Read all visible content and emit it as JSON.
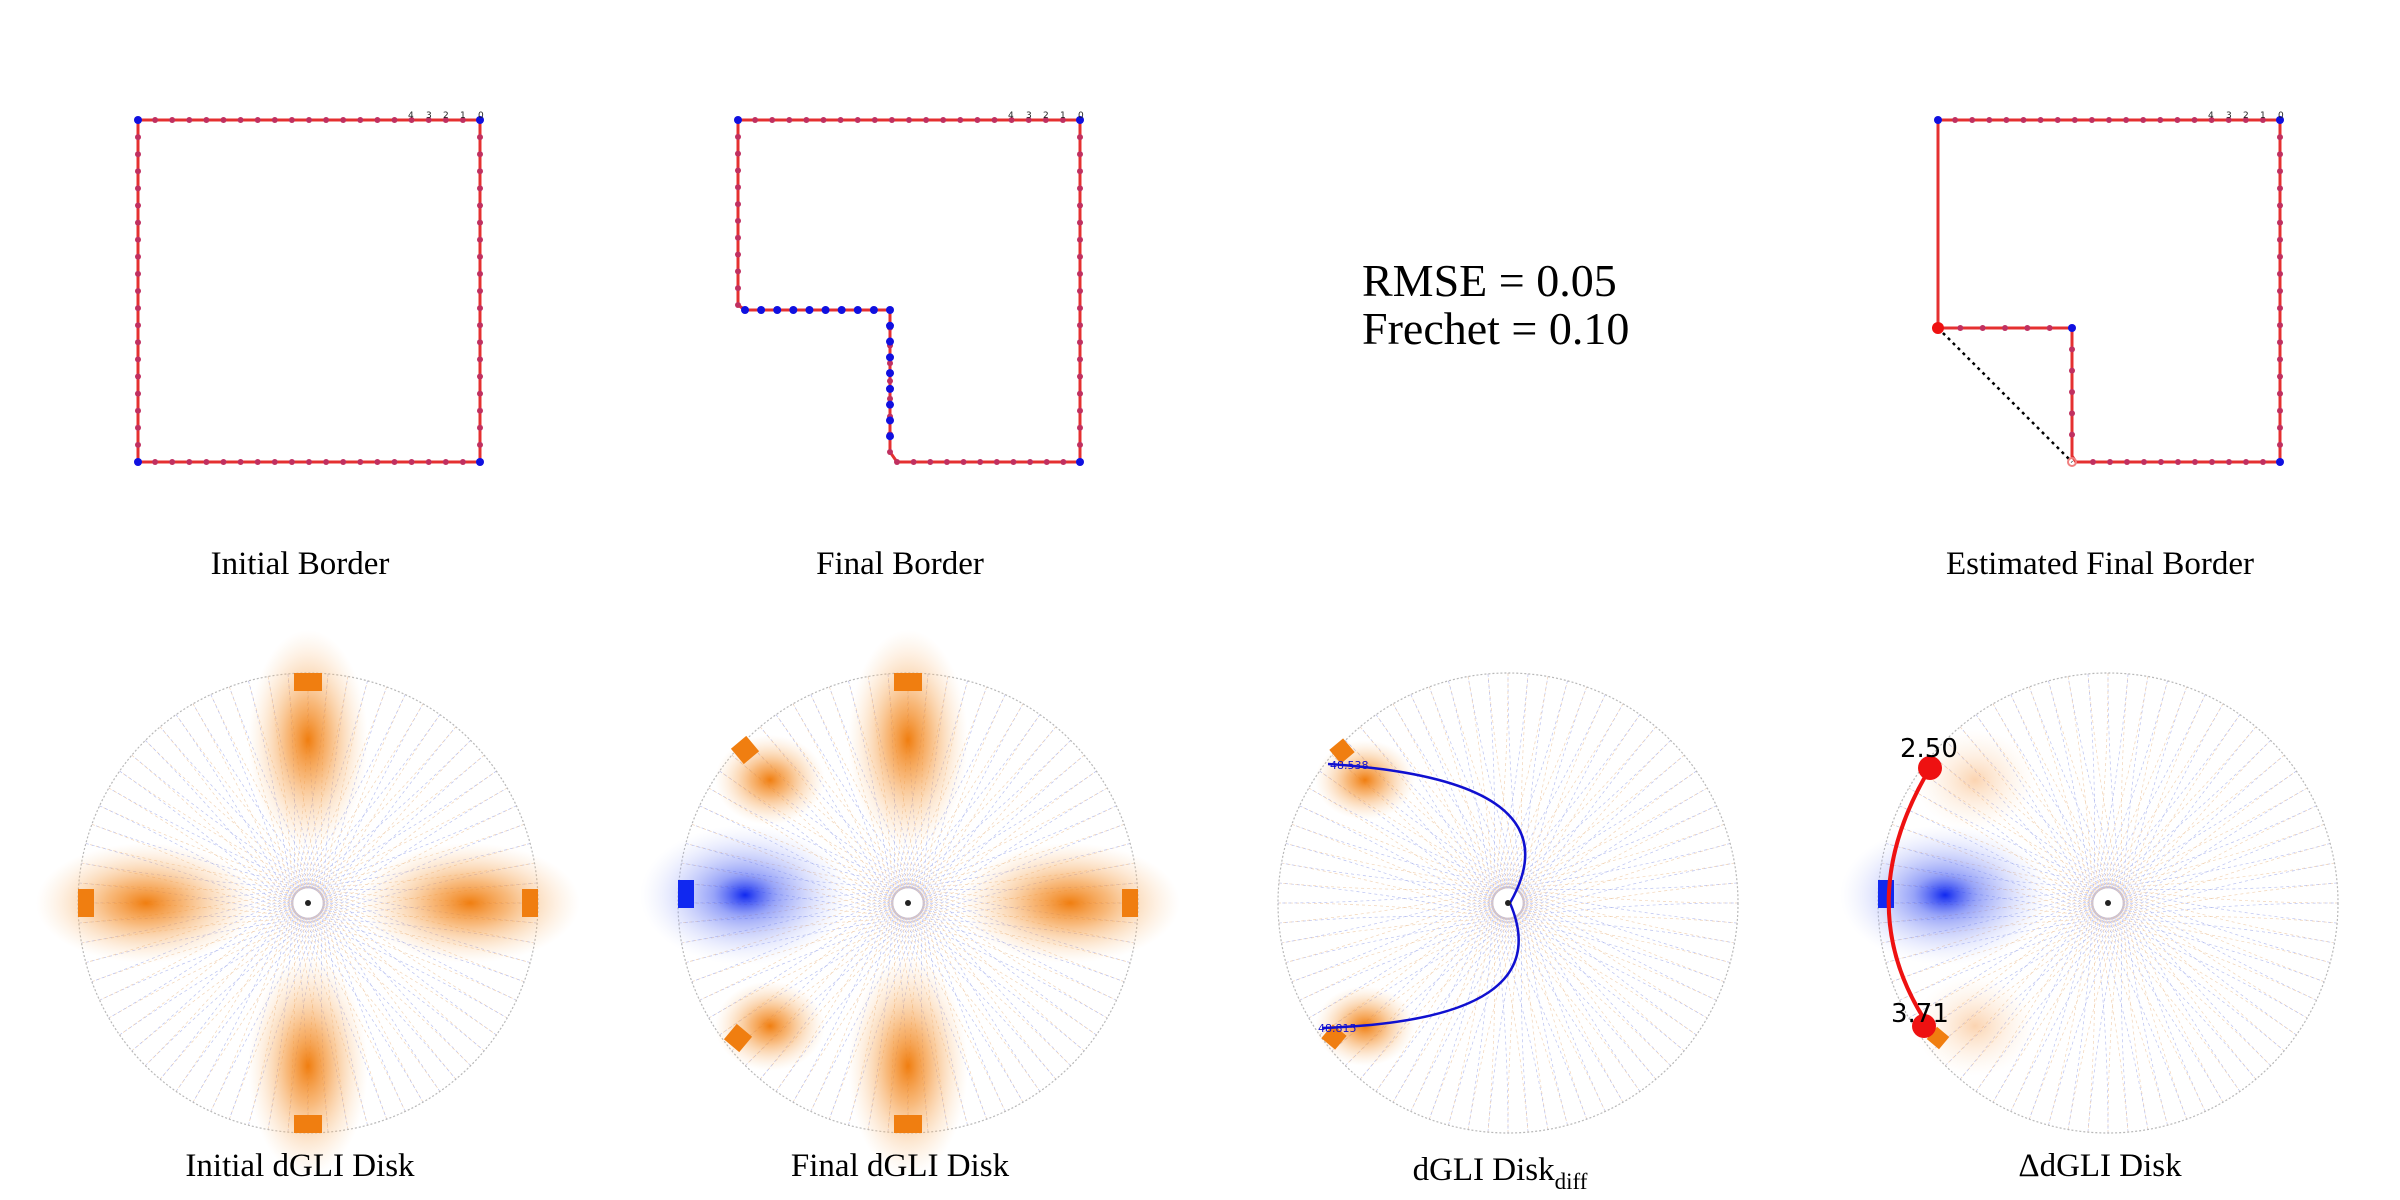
{
  "panels": {
    "initial_border": {
      "caption": "Initial Border",
      "tick_labels": [
        "4",
        "3",
        "2",
        "1",
        "0"
      ]
    },
    "final_border": {
      "caption": "Final Border",
      "tick_labels": [
        "4",
        "3",
        "2",
        "1",
        "0"
      ]
    },
    "metrics": {
      "rmse": "RMSE = 0.05",
      "frechet": "Frechet = 0.10"
    },
    "estimated_border": {
      "caption": "Estimated Final Border",
      "tick_labels": [
        "4",
        "3",
        "2",
        "1",
        "0"
      ]
    },
    "initial_disk": {
      "caption": "Initial dGLI Disk"
    },
    "final_disk": {
      "caption": "Final dGLI Disk"
    },
    "diff_disk": {
      "caption_main": "dGLI Disk",
      "caption_sub": "diff",
      "label_top": "48.538",
      "label_bottom": "48.815"
    },
    "delta_disk": {
      "caption": "ΔdGLI Disk",
      "label_top": "2.50",
      "label_bottom": "3.71"
    }
  },
  "colors": {
    "curve": "#e53030",
    "points": "#1010e0",
    "positive": "#f07e10",
    "negative": "#1028f0",
    "highlight": "#ee1111",
    "diff_arc": "#1010d0"
  }
}
